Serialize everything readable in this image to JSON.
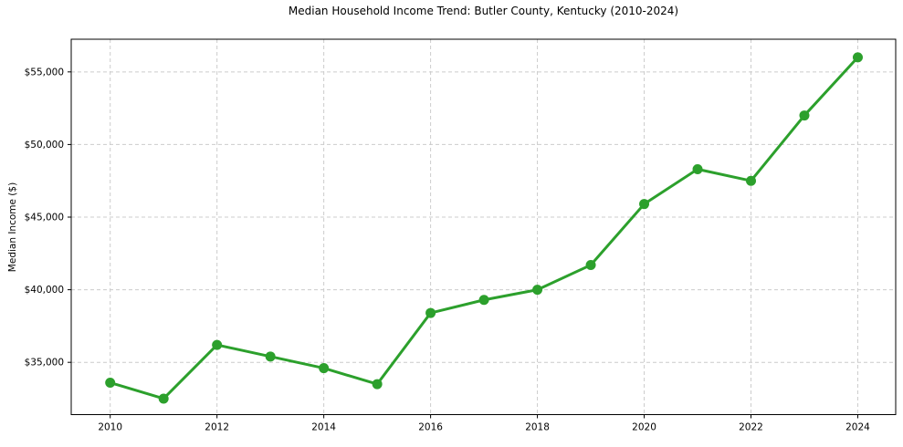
{
  "chart_data": {
    "type": "line",
    "title": "Median Household Income Trend: Butler County, Kentucky (2010-2024)",
    "xlabel": "",
    "ylabel": "Median Income ($)",
    "x": [
      2010,
      2011,
      2012,
      2013,
      2014,
      2015,
      2016,
      2017,
      2018,
      2019,
      2020,
      2021,
      2022,
      2023,
      2024
    ],
    "values": [
      33600,
      32500,
      36200,
      35400,
      34600,
      33500,
      38400,
      39300,
      40000,
      41700,
      45900,
      48300,
      47500,
      52000,
      56000
    ],
    "series_name": "Median Household Income",
    "xlim": [
      2009.27,
      2024.71
    ],
    "ylim": [
      31400,
      57250
    ],
    "x_tick_values": [
      2010,
      2012,
      2014,
      2016,
      2018,
      2020,
      2022,
      2024
    ],
    "x_tick_labels": [
      "2010",
      "2012",
      "2014",
      "2016",
      "2018",
      "2020",
      "2022",
      "2024"
    ],
    "y_tick_values": [
      35000,
      40000,
      45000,
      50000,
      55000
    ],
    "y_tick_labels": [
      "$35,000",
      "$40,000",
      "$45,000",
      "$50,000",
      "$55,000"
    ],
    "grid": true,
    "legend": "none",
    "marker": "circle",
    "colors": {
      "line": "#2ca02c",
      "marker": "#2ca02c",
      "grid": "#cccccc",
      "spine": "#000000",
      "background": "#ffffff",
      "text": "#000000"
    }
  }
}
